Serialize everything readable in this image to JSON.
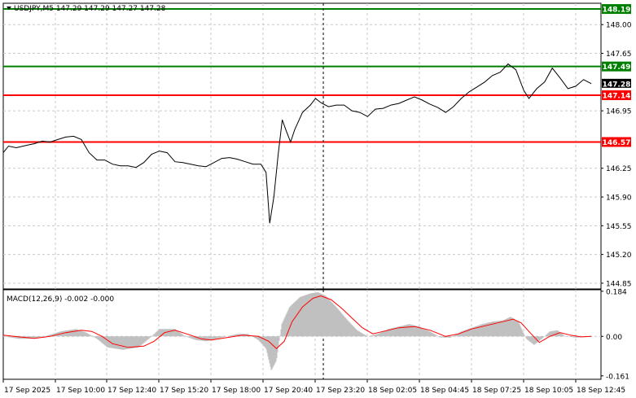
{
  "symbol_header": {
    "text": "USDJPY,M5  147.29 147.29 147.27 147.28"
  },
  "chart_data": [
    {
      "type": "line",
      "title": "USDJPY,M5",
      "ohlc": {
        "open": 147.29,
        "high": 147.29,
        "low": 147.27,
        "close": 147.28
      },
      "current_price": 147.28,
      "ylim": [
        144.78,
        148.26
      ],
      "y_ticks": [
        "148.00",
        "147.65",
        "146.95",
        "146.25",
        "145.90",
        "145.55",
        "145.20",
        "144.85"
      ],
      "x_ticks": [
        "17 Sep 2025",
        "17 Sep 10:00",
        "17 Sep 12:40",
        "17 Sep 15:20",
        "17 Sep 18:00",
        "17 Sep 20:40",
        "17 Sep 23:20",
        "18 Sep 02:05",
        "18 Sep 04:45",
        "18 Sep 07:25",
        "18 Sep 10:05",
        "18 Sep 12:45"
      ],
      "vertical_marker_x_index": 6.15,
      "horizontal_levels": [
        {
          "value": 148.19,
          "label": "148.19",
          "color": "#008000"
        },
        {
          "value": 147.49,
          "label": "147.49",
          "color": "#008000"
        },
        {
          "value": 147.14,
          "label": "147.14",
          "color": "#ff0000"
        },
        {
          "value": 146.57,
          "label": "146.57",
          "color": "#ff0000"
        }
      ],
      "series": [
        {
          "color": "#000000",
          "points": [
            [
              0,
              146.44
            ],
            [
              0.1,
              146.52
            ],
            [
              0.25,
              146.5
            ],
            [
              0.45,
              146.53
            ],
            [
              0.6,
              146.55
            ],
            [
              0.75,
              146.58
            ],
            [
              0.9,
              146.57
            ],
            [
              1.05,
              146.6
            ],
            [
              1.2,
              146.63
            ],
            [
              1.35,
              146.64
            ],
            [
              1.5,
              146.6
            ],
            [
              1.65,
              146.44
            ],
            [
              1.8,
              146.35
            ],
            [
              1.95,
              146.35
            ],
            [
              2.1,
              146.3
            ],
            [
              2.25,
              146.28
            ],
            [
              2.4,
              146.28
            ],
            [
              2.55,
              146.26
            ],
            [
              2.7,
              146.32
            ],
            [
              2.85,
              146.42
            ],
            [
              3.0,
              146.46
            ],
            [
              3.15,
              146.44
            ],
            [
              3.3,
              146.33
            ],
            [
              3.45,
              146.32
            ],
            [
              3.6,
              146.3
            ],
            [
              3.75,
              146.28
            ],
            [
              3.9,
              146.27
            ],
            [
              4.05,
              146.32
            ],
            [
              4.2,
              146.37
            ],
            [
              4.35,
              146.38
            ],
            [
              4.5,
              146.36
            ],
            [
              4.65,
              146.33
            ],
            [
              4.8,
              146.3
            ],
            [
              4.95,
              146.3
            ],
            [
              5.05,
              146.2
            ],
            [
              5.12,
              145.58
            ],
            [
              5.2,
              145.9
            ],
            [
              5.28,
              146.4
            ],
            [
              5.36,
              146.84
            ],
            [
              5.44,
              146.7
            ],
            [
              5.52,
              146.57
            ],
            [
              5.6,
              146.72
            ],
            [
              5.75,
              146.93
            ],
            [
              5.9,
              147.02
            ],
            [
              6.0,
              147.1
            ],
            [
              6.1,
              147.05
            ],
            [
              6.25,
              147.0
            ],
            [
              6.4,
              147.02
            ],
            [
              6.55,
              147.02
            ],
            [
              6.7,
              146.95
            ],
            [
              6.85,
              146.93
            ],
            [
              7.0,
              146.88
            ],
            [
              7.15,
              146.97
            ],
            [
              7.3,
              146.98
            ],
            [
              7.45,
              147.02
            ],
            [
              7.6,
              147.04
            ],
            [
              7.75,
              147.08
            ],
            [
              7.9,
              147.12
            ],
            [
              8.05,
              147.08
            ],
            [
              8.2,
              147.03
            ],
            [
              8.35,
              146.99
            ],
            [
              8.5,
              146.93
            ],
            [
              8.65,
              147.0
            ],
            [
              8.8,
              147.1
            ],
            [
              8.95,
              147.18
            ],
            [
              9.1,
              147.24
            ],
            [
              9.25,
              147.3
            ],
            [
              9.4,
              147.38
            ],
            [
              9.55,
              147.42
            ],
            [
              9.7,
              147.52
            ],
            [
              9.85,
              147.45
            ],
            [
              10.0,
              147.2
            ],
            [
              10.1,
              147.1
            ],
            [
              10.25,
              147.22
            ],
            [
              10.4,
              147.3
            ],
            [
              10.55,
              147.47
            ],
            [
              10.7,
              147.35
            ],
            [
              10.85,
              147.22
            ],
            [
              11.0,
              147.25
            ],
            [
              11.15,
              147.33
            ],
            [
              11.3,
              147.28
            ]
          ]
        }
      ]
    },
    {
      "type": "area",
      "title": "MACD(12,26,9) -0.002 -0.000",
      "ylim": [
        -0.175,
        0.19
      ],
      "y_ticks": [
        "0.184",
        "0.00",
        "-0.161"
      ],
      "series": [
        {
          "name": "MACD",
          "color": "#c0c0c0",
          "points": [
            [
              0,
              0.0
            ],
            [
              0.3,
              -0.01
            ],
            [
              0.5,
              -0.01
            ],
            [
              0.8,
              0.0
            ],
            [
              1.1,
              0.02
            ],
            [
              1.4,
              0.03
            ],
            [
              1.6,
              0.015
            ],
            [
              1.8,
              -0.01
            ],
            [
              2.0,
              -0.045
            ],
            [
              2.3,
              -0.055
            ],
            [
              2.6,
              -0.045
            ],
            [
              2.8,
              -0.01
            ],
            [
              3.0,
              0.03
            ],
            [
              3.3,
              0.03
            ],
            [
              3.5,
              0.0
            ],
            [
              3.7,
              -0.015
            ],
            [
              3.9,
              -0.02
            ],
            [
              4.1,
              -0.01
            ],
            [
              4.3,
              0.0
            ],
            [
              4.5,
              0.01
            ],
            [
              4.7,
              0.01
            ],
            [
              4.9,
              -0.015
            ],
            [
              5.05,
              -0.05
            ],
            [
              5.15,
              -0.14
            ],
            [
              5.25,
              -0.1
            ],
            [
              5.35,
              0.05
            ],
            [
              5.5,
              0.12
            ],
            [
              5.7,
              0.16
            ],
            [
              5.9,
              0.175
            ],
            [
              6.05,
              0.18
            ],
            [
              6.2,
              0.165
            ],
            [
              6.4,
              0.12
            ],
            [
              6.6,
              0.07
            ],
            [
              6.8,
              0.025
            ],
            [
              7.0,
              0.0
            ],
            [
              7.2,
              0.01
            ],
            [
              7.4,
              0.03
            ],
            [
              7.6,
              0.04
            ],
            [
              7.8,
              0.05
            ],
            [
              8.0,
              0.04
            ],
            [
              8.2,
              0.02
            ],
            [
              8.4,
              -0.005
            ],
            [
              8.6,
              -0.005
            ],
            [
              8.8,
              0.02
            ],
            [
              9.0,
              0.035
            ],
            [
              9.2,
              0.05
            ],
            [
              9.4,
              0.06
            ],
            [
              9.6,
              0.065
            ],
            [
              9.75,
              0.08
            ],
            [
              9.9,
              0.06
            ],
            [
              10.05,
              -0.01
            ],
            [
              10.2,
              -0.035
            ],
            [
              10.35,
              -0.01
            ],
            [
              10.5,
              0.02
            ],
            [
              10.65,
              0.025
            ],
            [
              10.8,
              0.0
            ],
            [
              11.0,
              -0.005
            ],
            [
              11.3,
              -0.002
            ]
          ]
        },
        {
          "name": "Signal",
          "color": "#ff0000",
          "points": [
            [
              0,
              0.005
            ],
            [
              0.3,
              -0.002
            ],
            [
              0.6,
              -0.008
            ],
            [
              0.9,
              0.0
            ],
            [
              1.2,
              0.015
            ],
            [
              1.5,
              0.025
            ],
            [
              1.7,
              0.02
            ],
            [
              1.9,
              0.0
            ],
            [
              2.1,
              -0.03
            ],
            [
              2.4,
              -0.045
            ],
            [
              2.7,
              -0.04
            ],
            [
              2.9,
              -0.02
            ],
            [
              3.1,
              0.015
            ],
            [
              3.3,
              0.025
            ],
            [
              3.6,
              0.005
            ],
            [
              3.8,
              -0.01
            ],
            [
              4.0,
              -0.015
            ],
            [
              4.3,
              -0.005
            ],
            [
              4.6,
              0.005
            ],
            [
              4.9,
              0.0
            ],
            [
              5.1,
              -0.02
            ],
            [
              5.25,
              -0.05
            ],
            [
              5.4,
              -0.02
            ],
            [
              5.55,
              0.06
            ],
            [
              5.75,
              0.12
            ],
            [
              5.95,
              0.155
            ],
            [
              6.1,
              0.165
            ],
            [
              6.3,
              0.15
            ],
            [
              6.5,
              0.115
            ],
            [
              6.7,
              0.075
            ],
            [
              6.9,
              0.035
            ],
            [
              7.1,
              0.01
            ],
            [
              7.3,
              0.02
            ],
            [
              7.6,
              0.035
            ],
            [
              7.9,
              0.04
            ],
            [
              8.2,
              0.025
            ],
            [
              8.5,
              0.0
            ],
            [
              8.75,
              0.01
            ],
            [
              9.0,
              0.03
            ],
            [
              9.3,
              0.045
            ],
            [
              9.6,
              0.06
            ],
            [
              9.8,
              0.07
            ],
            [
              9.95,
              0.055
            ],
            [
              10.1,
              0.02
            ],
            [
              10.3,
              -0.025
            ],
            [
              10.5,
              0.0
            ],
            [
              10.7,
              0.015
            ],
            [
              10.9,
              0.005
            ],
            [
              11.1,
              -0.002
            ],
            [
              11.3,
              -0.0
            ]
          ]
        }
      ]
    }
  ]
}
